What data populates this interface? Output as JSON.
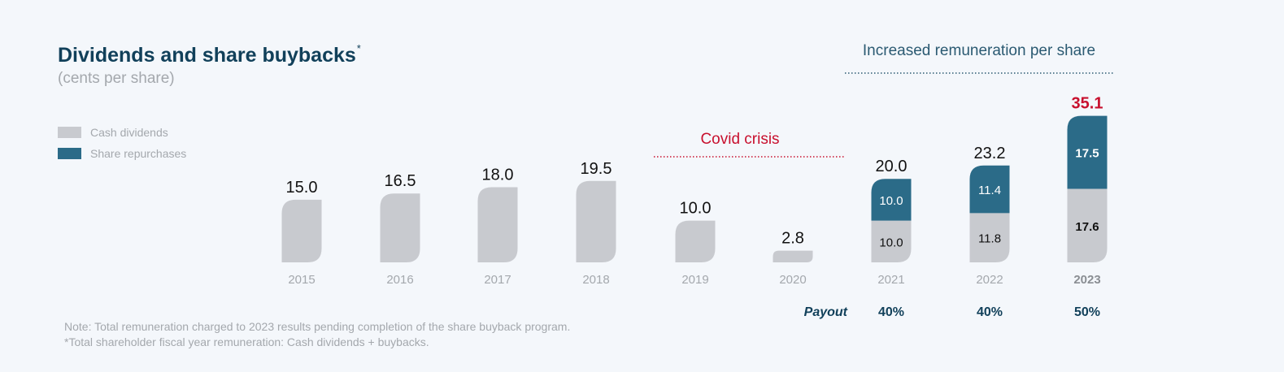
{
  "header": {
    "title": "Dividends and share buybacks",
    "title_mark": "*",
    "subtitle": "(cents per share)"
  },
  "legend": [
    {
      "label": "Cash dividends",
      "color": "#c8cacf"
    },
    {
      "label": "Share repurchases",
      "color": "#2b6b88"
    }
  ],
  "notes": [
    "Note: Total remuneration charged to 2023 results pending completion of the share buyback program.",
    "*Total shareholder fiscal year remuneration: Cash dividends + buybacks."
  ],
  "chart_data": {
    "type": "bar",
    "stacked": true,
    "categories": [
      "2015",
      "2016",
      "2017",
      "2018",
      "2019",
      "2020",
      "2021",
      "2022",
      "2023"
    ],
    "series": [
      {
        "name": "Cash dividends",
        "color": "#c8cacf",
        "values": [
          15.0,
          16.5,
          18.0,
          19.5,
          10.0,
          2.8,
          10.0,
          11.8,
          17.6
        ],
        "labels": [
          "",
          "",
          "",
          "",
          "",
          "",
          "10.0",
          "11.8",
          "17.6"
        ]
      },
      {
        "name": "Share repurchases",
        "color": "#2b6b88",
        "values": [
          0,
          0,
          0,
          0,
          0,
          0,
          10.0,
          11.4,
          17.5
        ],
        "labels": [
          "",
          "",
          "",
          "",
          "",
          "",
          "10.0",
          "11.4",
          "17.5"
        ]
      }
    ],
    "totals": [
      "15.0",
      "16.5",
      "18.0",
      "19.5",
      "10.0",
      "2.8",
      "20.0",
      "23.2",
      "35.1"
    ],
    "highlight_total_index": 8,
    "highlight_total_color": "#c8102e",
    "highlight_category_index": 8,
    "annotations": [
      {
        "text": "Covid crisis",
        "color": "#c8102e",
        "over_categories": [
          "2019",
          "2020"
        ]
      },
      {
        "text": "Increased remuneration per share",
        "color": "#2b5a72",
        "over_categories": [
          "2021",
          "2023"
        ]
      }
    ],
    "payout": {
      "label": "Payout",
      "values": [
        {
          "category": "2021",
          "value": "40%"
        },
        {
          "category": "2022",
          "value": "40%"
        },
        {
          "category": "2023",
          "value": "50%"
        }
      ]
    },
    "colors": {
      "axis_text": "#a4a8ad",
      "total_text": "#111111",
      "dark_label": "#11405a"
    }
  }
}
